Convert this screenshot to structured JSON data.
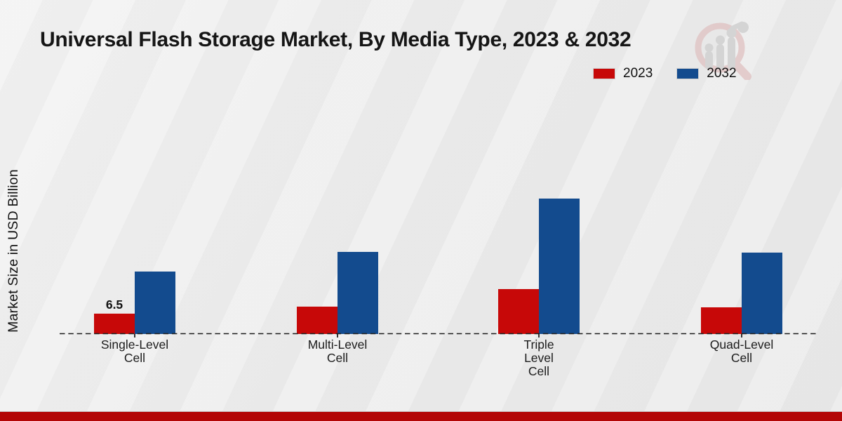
{
  "title": "Universal Flash Storage Market, By Media Type, 2023 & 2032",
  "logo_icon": "magnifier-bar-chart-logo",
  "colors": {
    "series_2023": "#c70808",
    "series_2032": "#134b8e",
    "footer_bar": "#b30606",
    "baseline": "#1a1a1a"
  },
  "chart_data": {
    "type": "bar",
    "title": "Universal Flash Storage Market, By Media Type, 2023 & 2032",
    "xlabel": "",
    "ylabel": "Market Size in USD Billion",
    "categories": [
      "Single-Level Cell",
      "Multi-Level Cell",
      "Triple Level Cell",
      "Quad-Level Cell"
    ],
    "category_display": [
      "Single-Level\nCell",
      "Multi-Level\nCell",
      "Triple\nLevel\nCell",
      "Quad-Level\nCell"
    ],
    "series": [
      {
        "name": "2023",
        "color": "#c70808",
        "values": [
          6.5,
          8.7,
          14.3,
          8.5
        ]
      },
      {
        "name": "2032",
        "color": "#134b8e",
        "values": [
          20,
          26.2,
          43.2,
          26
        ]
      }
    ],
    "annotations": [
      {
        "category_index": 0,
        "series_index": 0,
        "text": "6.5"
      }
    ],
    "ylim": [
      0,
      47
    ],
    "grid": false,
    "legend_position": "top-right",
    "baseline_style": "dashed"
  }
}
